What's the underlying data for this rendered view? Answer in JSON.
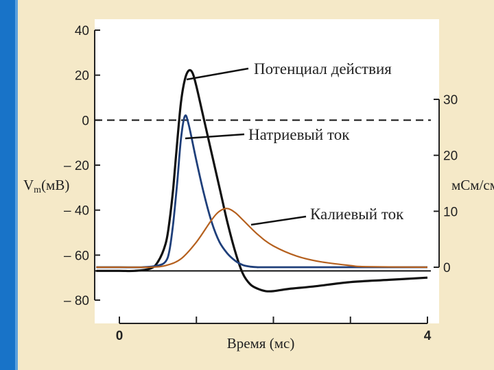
{
  "slide": {
    "accent_color": "#1873c8",
    "background_color": "#f5e9c8"
  },
  "chart_data": {
    "type": "line",
    "title": "",
    "xlabel": "Время (мс)",
    "ylabel_left": "Vm(мВ)",
    "ylabel_right": "мСм/см",
    "xlim": [
      0,
      4
    ],
    "ylim_left": [
      -80,
      40
    ],
    "ylim_right": [
      0,
      30
    ],
    "x_tick_labels": [
      {
        "x": 0,
        "label": "0"
      },
      {
        "x": 4,
        "label": "4"
      }
    ],
    "y_ticks_left": [
      40,
      20,
      0,
      -20,
      -40,
      -60,
      -80
    ],
    "y_tick_labels_left": [
      "40",
      "20",
      "0",
      "– 20",
      "– 40",
      "– 60",
      "– 80"
    ],
    "y_ticks_right": [
      30,
      20,
      10,
      0
    ],
    "y_tick_labels_right": [
      "30",
      "20",
      "10",
      "0"
    ],
    "reference_lines": [
      {
        "axis": "left",
        "y": 0,
        "style": "dashed"
      },
      {
        "axis": "left",
        "y": -67,
        "style": "solid"
      }
    ],
    "series": [
      {
        "name": "Потенциал действия",
        "axis": "left",
        "color": "#111111",
        "x": [
          -0.3,
          0.0,
          0.2,
          0.4,
          0.5,
          0.6,
          0.65,
          0.7,
          0.75,
          0.8,
          0.85,
          0.9,
          0.95,
          1.0,
          1.1,
          1.2,
          1.3,
          1.4,
          1.5,
          1.6,
          1.7,
          1.8,
          1.9,
          2.0,
          2.2,
          2.5,
          3.0,
          3.5,
          4.0
        ],
        "y": [
          -67,
          -67,
          -67,
          -66,
          -63,
          -55,
          -45,
          -30,
          -10,
          8,
          18,
          22,
          21,
          15,
          0,
          -15,
          -30,
          -45,
          -58,
          -68,
          -73,
          -75,
          -76,
          -76,
          -75,
          -74,
          -72,
          -71,
          -70
        ]
      },
      {
        "name": "Натриевый ток",
        "axis": "right",
        "color": "#1f3f7a",
        "x": [
          -0.3,
          0.0,
          0.3,
          0.5,
          0.6,
          0.65,
          0.7,
          0.75,
          0.8,
          0.85,
          0.9,
          1.0,
          1.1,
          1.2,
          1.3,
          1.4,
          1.5,
          1.6,
          1.7,
          1.8,
          2.0,
          4.0
        ],
        "y": [
          0,
          0,
          0,
          0.3,
          1.0,
          3.0,
          8.0,
          15.0,
          23.0,
          27.0,
          25.5,
          19.0,
          13.0,
          8.0,
          4.5,
          2.5,
          1.2,
          0.4,
          0.1,
          0.0,
          0,
          0
        ]
      },
      {
        "name": "Калиевый ток",
        "axis": "right",
        "color": "#b5601e",
        "x": [
          -0.3,
          0.0,
          0.4,
          0.6,
          0.8,
          1.0,
          1.2,
          1.3,
          1.4,
          1.5,
          1.6,
          1.8,
          2.0,
          2.3,
          2.6,
          3.0,
          3.2,
          4.0
        ],
        "y": [
          0,
          0,
          0,
          0.3,
          1.5,
          4.5,
          8.5,
          10.0,
          10.5,
          9.8,
          8.5,
          5.8,
          3.8,
          2.0,
          1.0,
          0.3,
          0.1,
          0
        ]
      }
    ],
    "annotations": [
      {
        "text": "Потенциал действия",
        "series": 0
      },
      {
        "text": "Натриевый ток",
        "series": 1
      },
      {
        "text": "Калиевый ток",
        "series": 2
      }
    ]
  }
}
